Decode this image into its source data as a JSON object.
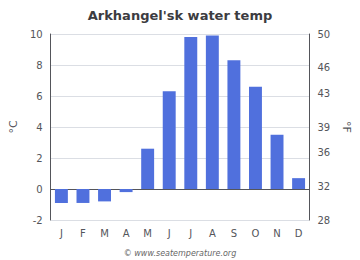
{
  "chart_data": {
    "type": "bar",
    "title": "Arkhangel'sk water temp",
    "categories": [
      "J",
      "F",
      "M",
      "A",
      "M",
      "J",
      "J",
      "A",
      "S",
      "O",
      "N",
      "D"
    ],
    "values": [
      -0.9,
      -0.9,
      -0.8,
      -0.2,
      2.6,
      6.3,
      9.8,
      9.9,
      8.3,
      6.6,
      3.5,
      0.7
    ],
    "ylabel": "°C",
    "ylim": [
      -2,
      10
    ],
    "yticks": [
      -2,
      0,
      2,
      4,
      6,
      8,
      10
    ],
    "y2label": "°F",
    "y2lim": [
      28,
      50
    ],
    "y2ticks": [
      28,
      32,
      36,
      39,
      43,
      46,
      50
    ],
    "annotations": [
      "© www.seatemperature.org"
    ],
    "grid": true
  }
}
